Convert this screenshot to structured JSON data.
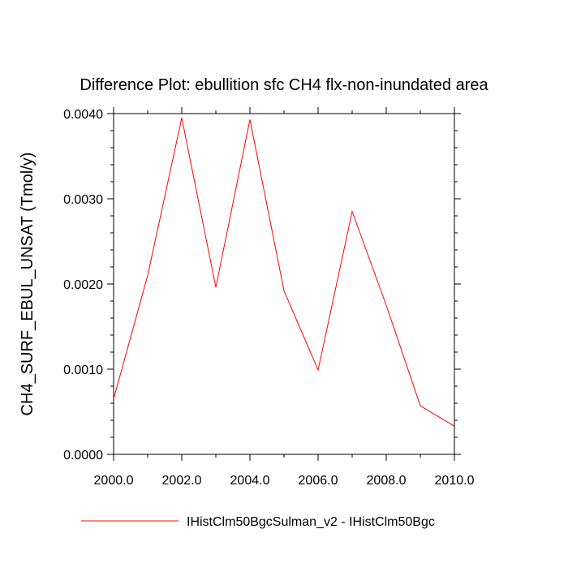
{
  "chart_data": {
    "type": "line",
    "title": "Difference Plot: ebullition sfc CH4 flx-non-inundated area",
    "xlabel": "",
    "ylabel": "CH4_SURF_EBUL_UNSAT  (Tmol/y)",
    "xlim": [
      2000,
      2010
    ],
    "ylim": [
      0,
      0.004
    ],
    "x_ticks": [
      2000,
      2002,
      2004,
      2006,
      2008,
      2010
    ],
    "x_tick_labels": [
      "2000.0",
      "2002.0",
      "2004.0",
      "2006.0",
      "2008.0",
      "2010.0"
    ],
    "y_ticks": [
      0,
      0.001,
      0.002,
      0.003,
      0.004
    ],
    "y_tick_labels": [
      "0.0000",
      "0.0010",
      "0.0020",
      "0.0030",
      "0.0040"
    ],
    "x": [
      2000,
      2001,
      2002,
      2003,
      2004,
      2005,
      2006,
      2007,
      2008,
      2009,
      2010
    ],
    "series": [
      {
        "name": "IHistClm50BgcSulman_v2 - IHistClm50Bgc",
        "color": "#ff0000",
        "values": [
          0.00065,
          0.0021,
          0.00395,
          0.00196,
          0.00393,
          0.00192,
          0.00099,
          0.00285,
          0.00175,
          0.00057,
          0.00033
        ]
      }
    ],
    "grid": false,
    "legend_position": "bottom-left"
  }
}
